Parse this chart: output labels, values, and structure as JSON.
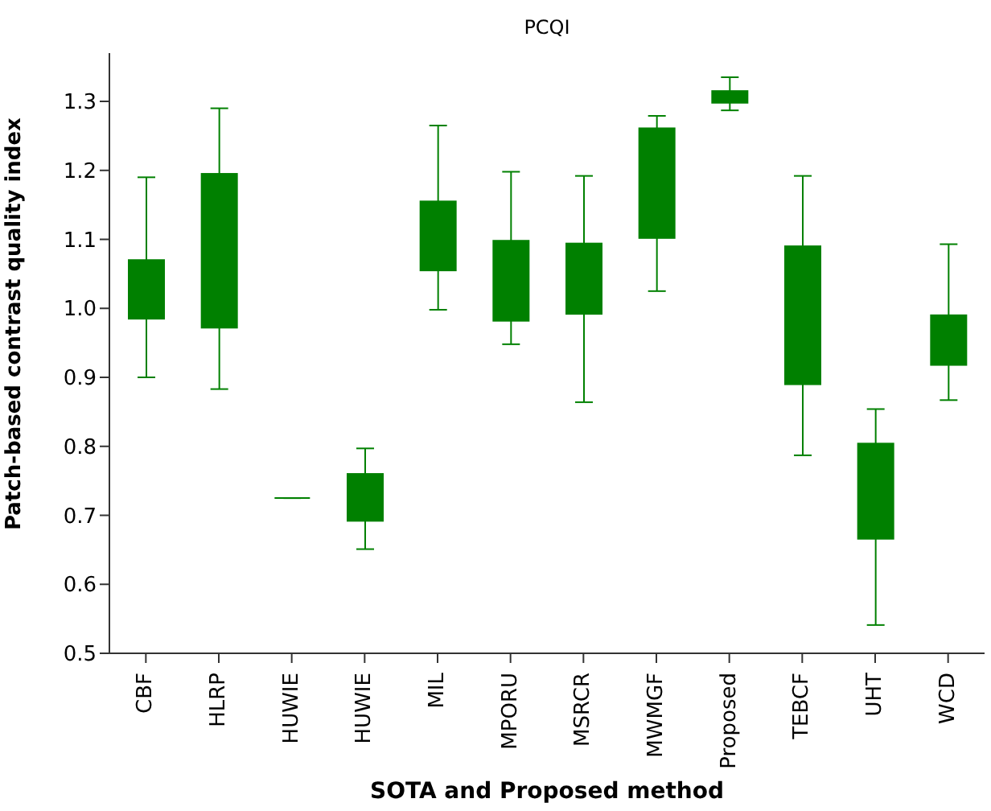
{
  "chart_data": {
    "type": "box",
    "title": "PCQI",
    "xlabel": "SOTA and Proposed method",
    "ylabel": "Patch-based contrast quality index",
    "categories": [
      "CBF",
      "HLRP",
      "HUWIE",
      "HUWIE",
      "MIL",
      "MPORU",
      "MSRCR",
      "MWMGF",
      "Proposed",
      "TEBCF",
      "UHT",
      "WCD"
    ],
    "color": "#008000",
    "boxes": [
      {
        "low": 0.9,
        "q1": 0.985,
        "median": 1.03,
        "q3": 1.07,
        "high": 1.19
      },
      {
        "low": 0.883,
        "q1": 0.972,
        "median": 1.08,
        "q3": 1.195,
        "high": 1.29
      },
      {
        "low": 0.725,
        "q1": 0.725,
        "median": 0.725,
        "q3": 0.725,
        "high": 0.725
      },
      {
        "low": 0.651,
        "q1": 0.692,
        "median": 0.725,
        "q3": 0.76,
        "high": 0.797
      },
      {
        "low": 0.998,
        "q1": 1.055,
        "median": 1.1,
        "q3": 1.155,
        "high": 1.265
      },
      {
        "low": 0.948,
        "q1": 0.982,
        "median": 1.04,
        "q3": 1.098,
        "high": 1.198
      },
      {
        "low": 0.864,
        "q1": 0.992,
        "median": 1.04,
        "q3": 1.094,
        "high": 1.192
      },
      {
        "low": 1.025,
        "q1": 1.102,
        "median": 1.18,
        "q3": 1.261,
        "high": 1.279
      },
      {
        "low": 1.287,
        "q1": 1.298,
        "median": 1.305,
        "q3": 1.315,
        "high": 1.335
      },
      {
        "low": 0.787,
        "q1": 0.89,
        "median": 0.99,
        "q3": 1.09,
        "high": 1.192
      },
      {
        "low": 0.541,
        "q1": 0.666,
        "median": 0.73,
        "q3": 0.804,
        "high": 0.854
      },
      {
        "low": 0.867,
        "q1": 0.918,
        "median": 0.95,
        "q3": 0.99,
        "high": 1.093
      }
    ],
    "ylim": [
      0.5,
      1.37
    ],
    "yticks": [
      0.5,
      0.6,
      0.7,
      0.8,
      0.9,
      {
        "value": 1,
        "label": "1.0"
      },
      1.1,
      1.2,
      1.3
    ],
    "grid": false
  }
}
